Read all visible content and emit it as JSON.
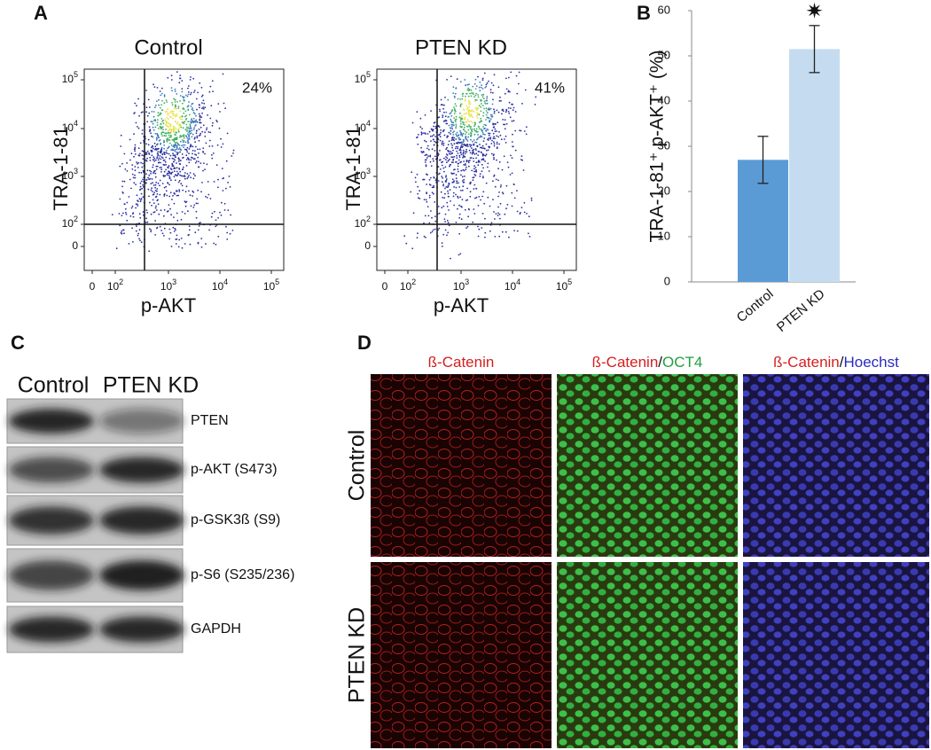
{
  "panel_labels": [
    "A",
    "B",
    "C",
    "D"
  ],
  "flow_cytometry": {
    "y_label": "TRA-1-81",
    "x_label": "p-AKT",
    "y_ticks": [
      {
        "base": "10",
        "exp": "5"
      },
      {
        "base": "10",
        "exp": "4"
      },
      {
        "base": "10",
        "exp": "3"
      },
      {
        "base": "10",
        "exp": "2"
      },
      {
        "base": "0"
      }
    ],
    "x_ticks": [
      {
        "base": "0"
      },
      {
        "base": "10",
        "exp": "2"
      },
      {
        "base": "10",
        "exp": "3"
      },
      {
        "base": "10",
        "exp": "4"
      },
      {
        "base": "10",
        "exp": "5"
      }
    ],
    "plots": [
      {
        "title": "Control",
        "percent": "24%"
      },
      {
        "title": "PTEN KD",
        "percent": "41%"
      }
    ]
  },
  "chart_data": {
    "type": "bar",
    "y_label": "TRA-1-81⁺ p-AKT⁺ (%)",
    "categories": [
      "Control",
      "PTEN KD"
    ],
    "values": [
      27,
      51.5
    ],
    "errors": [
      5.2,
      5.2
    ],
    "colors": [
      "#5b9bd5",
      "#c5dcf0"
    ],
    "ylim": [
      0,
      60
    ],
    "yticks": [
      0,
      10,
      20,
      30,
      40,
      50,
      60
    ],
    "annotation": "✷"
  },
  "western_blot": {
    "lanes": [
      "Control",
      "PTEN KD"
    ],
    "bands": [
      "PTEN",
      "p-AKT (S473)",
      "p-GSK3ß (S9)",
      "p-S6 (S235/236)",
      "GAPDH"
    ]
  },
  "immunofluorescence": {
    "columns": [
      [
        "ß-Catenin"
      ],
      [
        "ß-Catenin",
        "/",
        "OCT4"
      ],
      [
        "ß-Catenin",
        "/",
        "Hoechst"
      ]
    ],
    "rows": [
      "Control",
      "PTEN KD"
    ]
  }
}
